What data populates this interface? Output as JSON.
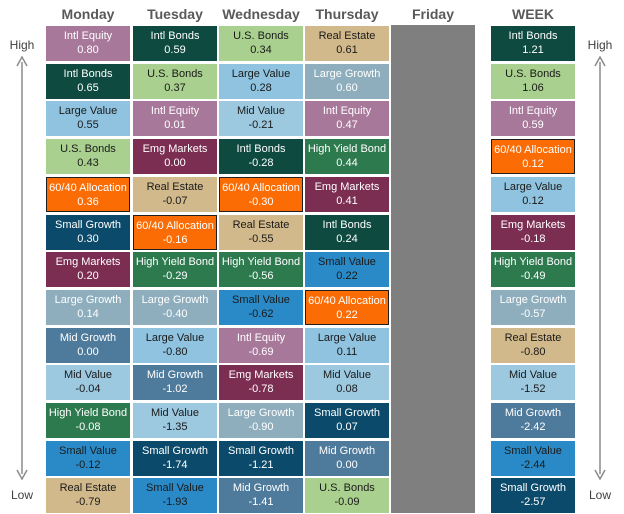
{
  "chart_data": {
    "type": "table",
    "columns": [
      "Monday",
      "Tuesday",
      "Wednesday",
      "Thursday",
      "Friday",
      "WEEK"
    ],
    "high_label": "High",
    "low_label": "Low",
    "grid": [
      [
        {
          "label": "Intl Equity",
          "value": "0.80"
        },
        {
          "label": "Intl Bonds",
          "value": "0.65"
        },
        {
          "label": "Large Value",
          "value": "0.55"
        },
        {
          "label": "U.S. Bonds",
          "value": "0.43"
        },
        {
          "label": "60/40 Allocation",
          "value": "0.36"
        },
        {
          "label": "Small Growth",
          "value": "0.30"
        },
        {
          "label": "Emg Markets",
          "value": "0.20"
        },
        {
          "label": "Large Growth",
          "value": "0.14"
        },
        {
          "label": "Mid Growth",
          "value": "0.00"
        },
        {
          "label": "Mid Value",
          "value": "-0.04"
        },
        {
          "label": "High Yield Bond",
          "value": "-0.08"
        },
        {
          "label": "Small Value",
          "value": "-0.12"
        },
        {
          "label": "Real Estate",
          "value": "-0.79"
        }
      ],
      [
        {
          "label": "Intl Bonds",
          "value": "0.59"
        },
        {
          "label": "U.S. Bonds",
          "value": "0.37"
        },
        {
          "label": "Intl Equity",
          "value": "0.01"
        },
        {
          "label": "Emg Markets",
          "value": "0.00"
        },
        {
          "label": "Real Estate",
          "value": "-0.07"
        },
        {
          "label": "60/40 Allocation",
          "value": "-0.16"
        },
        {
          "label": "High Yield Bond",
          "value": "-0.29"
        },
        {
          "label": "Large Growth",
          "value": "-0.40"
        },
        {
          "label": "Large Value",
          "value": "-0.80"
        },
        {
          "label": "Mid Growth",
          "value": "-1.02"
        },
        {
          "label": "Mid Value",
          "value": "-1.35"
        },
        {
          "label": "Small Growth",
          "value": "-1.74"
        },
        {
          "label": "Small Value",
          "value": "-1.93"
        }
      ],
      [
        {
          "label": "U.S. Bonds",
          "value": "0.34"
        },
        {
          "label": "Large Value",
          "value": "0.28"
        },
        {
          "label": "Mid Value",
          "value": "-0.21"
        },
        {
          "label": "Intl Bonds",
          "value": "-0.28"
        },
        {
          "label": "60/40 Allocation",
          "value": "-0.30"
        },
        {
          "label": "Real Estate",
          "value": "-0.55"
        },
        {
          "label": "High Yield Bond",
          "value": "-0.56"
        },
        {
          "label": "Small Value",
          "value": "-0.62"
        },
        {
          "label": "Intl Equity",
          "value": "-0.69"
        },
        {
          "label": "Emg Markets",
          "value": "-0.78"
        },
        {
          "label": "Large Growth",
          "value": "-0.90"
        },
        {
          "label": "Small Growth",
          "value": "-1.21"
        },
        {
          "label": "Mid Growth",
          "value": "-1.41"
        }
      ],
      [
        {
          "label": "Real Estate",
          "value": "0.61"
        },
        {
          "label": "Large Growth",
          "value": "0.60"
        },
        {
          "label": "Intl Equity",
          "value": "0.47"
        },
        {
          "label": "High Yield Bond",
          "value": "0.44"
        },
        {
          "label": "Emg Markets",
          "value": "0.41"
        },
        {
          "label": "Intl Bonds",
          "value": "0.24"
        },
        {
          "label": "Small Value",
          "value": "0.22"
        },
        {
          "label": "60/40 Allocation",
          "value": "0.22"
        },
        {
          "label": "Large Value",
          "value": "0.11"
        },
        {
          "label": "Mid Value",
          "value": "0.08"
        },
        {
          "label": "Small Growth",
          "value": "0.07"
        },
        {
          "label": "Mid Growth",
          "value": "0.00"
        },
        {
          "label": "U.S. Bonds",
          "value": "-0.09"
        }
      ],
      [],
      [
        {
          "label": "Intl Bonds",
          "value": "1.21"
        },
        {
          "label": "U.S. Bonds",
          "value": "1.06"
        },
        {
          "label": "Intl Equity",
          "value": "0.59"
        },
        {
          "label": "60/40 Allocation",
          "value": "0.12"
        },
        {
          "label": "Large Value",
          "value": "0.12"
        },
        {
          "label": "Emg Markets",
          "value": "-0.18"
        },
        {
          "label": "High Yield Bond",
          "value": "-0.49"
        },
        {
          "label": "Large Growth",
          "value": "-0.57"
        },
        {
          "label": "Real Estate",
          "value": "-0.80"
        },
        {
          "label": "Mid Value",
          "value": "-1.52"
        },
        {
          "label": "Mid Growth",
          "value": "-2.42"
        },
        {
          "label": "Small Value",
          "value": "-2.44"
        },
        {
          "label": "Small Growth",
          "value": "-2.57"
        }
      ]
    ],
    "asset_colors": {
      "Intl Equity": {
        "bg": "#a8789a",
        "fg": "#ffffff"
      },
      "Intl Bonds": {
        "bg": "#0e4a40",
        "fg": "#ffffff"
      },
      "Large Value": {
        "bg": "#8fc3df",
        "fg": "#1a1a1a"
      },
      "U.S. Bonds": {
        "bg": "#a9d08e",
        "fg": "#1a1a1a"
      },
      "60/40 Allocation": {
        "bg": "#fc6c04",
        "fg": "#ffffff"
      },
      "Small Growth": {
        "bg": "#0b4a6a",
        "fg": "#ffffff"
      },
      "Emg Markets": {
        "bg": "#7b2d52",
        "fg": "#ffffff"
      },
      "Large Growth": {
        "bg": "#8eaebd",
        "fg": "#ffffff"
      },
      "Mid Growth": {
        "bg": "#4e7a9b",
        "fg": "#ffffff"
      },
      "Mid Value": {
        "bg": "#9cc8e0",
        "fg": "#1a1a1a"
      },
      "High Yield Bond": {
        "bg": "#2e7a4f",
        "fg": "#ffffff"
      },
      "Small Value": {
        "bg": "#2a8ac7",
        "fg": "#1a1a1a"
      },
      "Real Estate": {
        "bg": "#d1b98b",
        "fg": "#1a1a1a"
      }
    },
    "friday_fill": "#7f7f7f"
  }
}
